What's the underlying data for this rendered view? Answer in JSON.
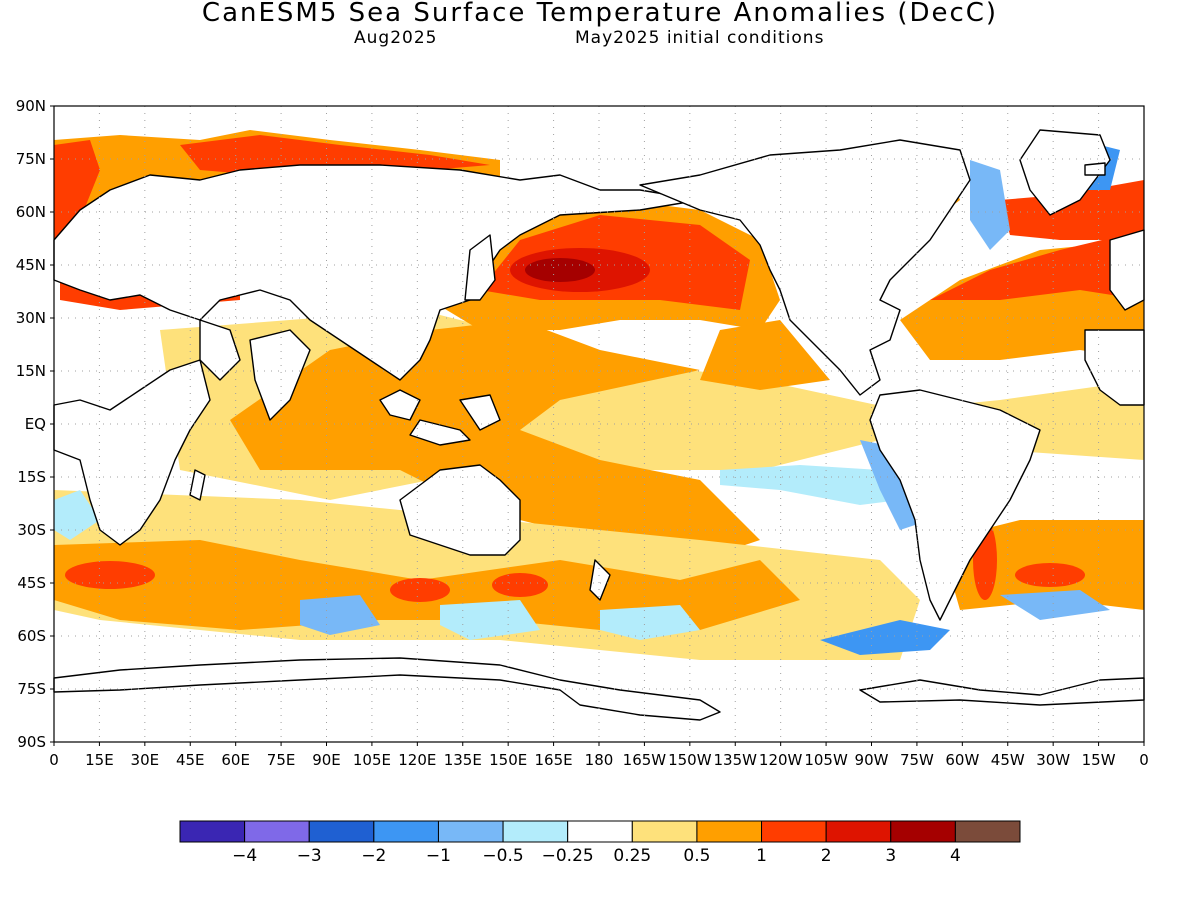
{
  "title": "CanESM5 Sea Surface Temperature Anomalies (DecC)",
  "valid_month": "Aug2025",
  "initial_conditions": "May2025 initial conditions",
  "lat_labels": [
    "90N",
    "75N",
    "60N",
    "45N",
    "30N",
    "15N",
    "EQ",
    "15S",
    "30S",
    "45S",
    "60S",
    "75S",
    "90S"
  ],
  "lon_labels": [
    "0",
    "15E",
    "30E",
    "45E",
    "60E",
    "75E",
    "90E",
    "105E",
    "120E",
    "135E",
    "150E",
    "165E",
    "180",
    "165W",
    "150W",
    "135W",
    "120W",
    "105W",
    "90W",
    "75W",
    "60W",
    "45W",
    "30W",
    "15W",
    "0"
  ],
  "colorbar": {
    "colors": [
      "#3a26b3",
      "#7f69e8",
      "#1f60d2",
      "#3d96f3",
      "#78b8f7",
      "#b3ecfb",
      "#ffffff",
      "#fee17b",
      "#ff9f00",
      "#ff3d00",
      "#de1400",
      "#a50000",
      "#7b4b3a"
    ],
    "labels": [
      "−4",
      "−3",
      "−2",
      "−1",
      "−0.5",
      "−0.25",
      "0.25",
      "0.5",
      "1",
      "2",
      "3",
      "4"
    ]
  },
  "colors": {
    "land_outline": "#000000",
    "grid": "#a0a0a0",
    "ocean_neutral": "#ffffff"
  }
}
